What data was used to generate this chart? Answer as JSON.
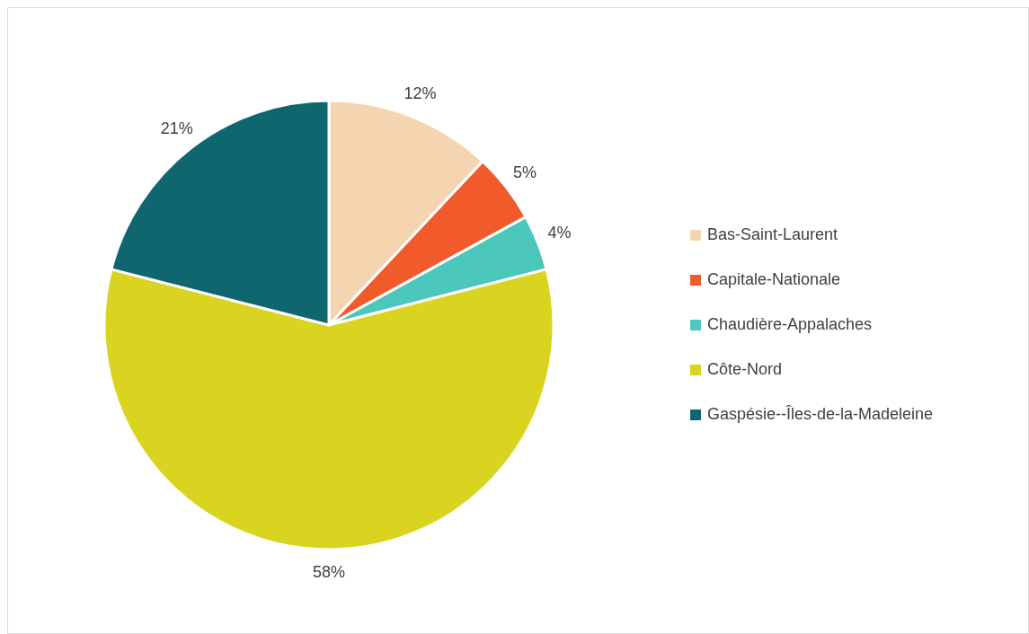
{
  "chart_data": {
    "type": "pie",
    "categories": [
      "Bas-Saint-Laurent",
      "Capitale-Nationale",
      "Chaudière-Appalaches",
      "Côte-Nord",
      "Gaspésie--Îles-de-la-Madeleine"
    ],
    "values": [
      12,
      5,
      4,
      58,
      21
    ],
    "colors": [
      "#f5d5b0",
      "#f15a2b",
      "#4cc7bb",
      "#d9d41f",
      "#10666e"
    ],
    "value_labels": [
      "12%",
      "5%",
      "4%",
      "58%",
      "21%"
    ],
    "legend": "right"
  }
}
